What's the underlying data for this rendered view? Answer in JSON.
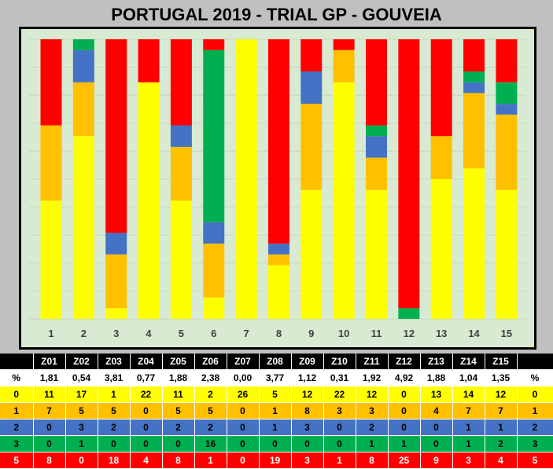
{
  "title": "PORTUGAL 2019 - TRIAL GP - GOUVEIA",
  "colors": {
    "s0": "#ffff00",
    "s1": "#ffc000",
    "s2": "#4472c4",
    "s3": "#00b050",
    "s5": "#ff0000",
    "plot_bg": "#d9ead3",
    "frame": "#000000"
  },
  "chart_data": {
    "type": "bar",
    "stacked": true,
    "normalized": true,
    "categories": [
      "1",
      "2",
      "3",
      "4",
      "5",
      "6",
      "7",
      "8",
      "9",
      "10",
      "11",
      "12",
      "13",
      "14",
      "15"
    ],
    "series": [
      {
        "name": "0",
        "values": [
          11,
          17,
          1,
          22,
          11,
          2,
          26,
          5,
          12,
          22,
          12,
          0,
          13,
          14,
          12
        ]
      },
      {
        "name": "1",
        "values": [
          7,
          5,
          5,
          0,
          5,
          5,
          0,
          1,
          8,
          3,
          3,
          0,
          4,
          7,
          7
        ]
      },
      {
        "name": "2",
        "values": [
          0,
          3,
          2,
          0,
          2,
          2,
          0,
          1,
          3,
          0,
          2,
          0,
          0,
          1,
          1
        ]
      },
      {
        "name": "3",
        "values": [
          0,
          1,
          0,
          0,
          0,
          16,
          0,
          0,
          0,
          0,
          1,
          1,
          0,
          1,
          2
        ]
      },
      {
        "name": "5",
        "values": [
          8,
          0,
          18,
          4,
          8,
          1,
          0,
          19,
          3,
          1,
          8,
          25,
          9,
          3,
          4
        ]
      }
    ],
    "grid": true,
    "legend": "none"
  },
  "table": {
    "header": [
      "",
      "Z01",
      "Z02",
      "Z03",
      "Z04",
      "Z05",
      "Z06",
      "Z07",
      "Z08",
      "Z09",
      "Z10",
      "Z11",
      "Z12",
      "Z13",
      "Z14",
      "Z15",
      ""
    ],
    "pct": [
      "%",
      "1,81",
      "0,54",
      "3,81",
      "0,77",
      "1,88",
      "2,38",
      "0,00",
      "3,77",
      "1,12",
      "0,31",
      "1,92",
      "4,92",
      "1,88",
      "1,04",
      "1,35",
      "%"
    ],
    "s0": [
      "0",
      "11",
      "17",
      "1",
      "22",
      "11",
      "2",
      "26",
      "5",
      "12",
      "22",
      "12",
      "0",
      "13",
      "14",
      "12",
      "0"
    ],
    "s1": [
      "1",
      "7",
      "5",
      "5",
      "0",
      "5",
      "5",
      "0",
      "1",
      "8",
      "3",
      "3",
      "0",
      "4",
      "7",
      "7",
      "1"
    ],
    "s2": [
      "2",
      "0",
      "3",
      "2",
      "0",
      "2",
      "2",
      "0",
      "1",
      "3",
      "0",
      "2",
      "0",
      "0",
      "1",
      "1",
      "2"
    ],
    "s3": [
      "3",
      "0",
      "1",
      "0",
      "0",
      "0",
      "16",
      "0",
      "0",
      "0",
      "0",
      "1",
      "1",
      "0",
      "1",
      "2",
      "3"
    ],
    "s5": [
      "5",
      "8",
      "0",
      "18",
      "4",
      "8",
      "1",
      "0",
      "19",
      "3",
      "1",
      "8",
      "25",
      "9",
      "3",
      "4",
      "5"
    ]
  }
}
